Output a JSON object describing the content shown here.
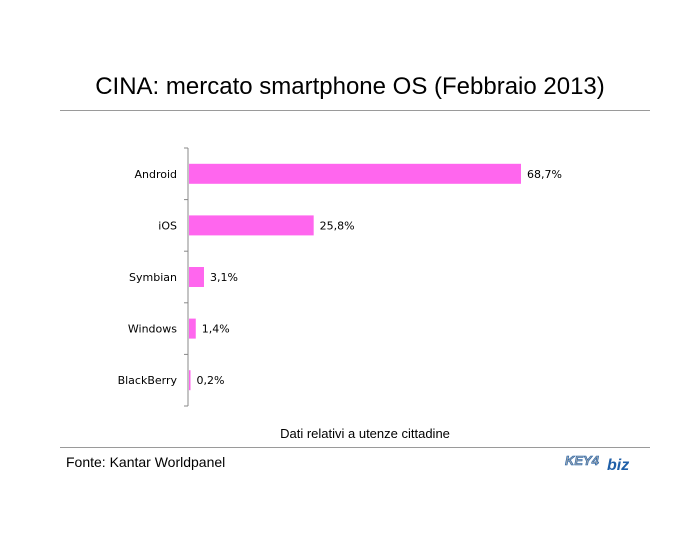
{
  "title": "CINA: mercato smartphone OS (Febbraio 2013)",
  "note": "Dati relativi a utenze cittadine",
  "source": "Fonte: Kantar Worldpanel",
  "logo": {
    "text_key": "KEY4",
    "text_biz": "biz"
  },
  "colors": {
    "bar": "#ff66ee",
    "axis": "#888888",
    "rule": "#9a9a9a",
    "logo_blue": "#1f5fa8",
    "logo_gray": "#9aa4ad"
  },
  "chart_data": {
    "type": "bar",
    "orientation": "horizontal",
    "categories": [
      "Android",
      "iOS",
      "Symbian",
      "Windows",
      "BlackBerry"
    ],
    "values": [
      68.7,
      25.8,
      3.1,
      1.4,
      0.2
    ],
    "value_labels": [
      "68,7%",
      "25,8%",
      "3,1%",
      "1,4%",
      "0,2%"
    ],
    "xlim": [
      0,
      68.7
    ],
    "grid": false,
    "legend": "none"
  }
}
